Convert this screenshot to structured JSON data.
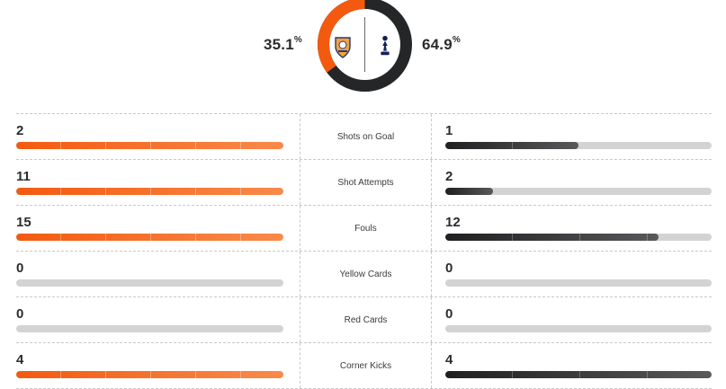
{
  "possession": {
    "home_value": "35.1",
    "away_value": "64.9",
    "percent_sign": "%",
    "home_fraction": 0.351,
    "home_color": "#f35a10",
    "away_color": "#252628",
    "home_crest_icon": "luton-town-crest-icon",
    "away_crest_icon": "tottenham-crest-icon"
  },
  "stats": [
    {
      "label": "Shots on Goal",
      "home": "2",
      "away": "1",
      "home_fill": 1.0,
      "away_fill": 0.5
    },
    {
      "label": "Shot Attempts",
      "home": "11",
      "away": "2",
      "home_fill": 1.0,
      "away_fill": 0.18
    },
    {
      "label": "Fouls",
      "home": "15",
      "away": "12",
      "home_fill": 1.0,
      "away_fill": 0.8
    },
    {
      "label": "Yellow Cards",
      "home": "0",
      "away": "0",
      "home_fill": 0,
      "away_fill": 0
    },
    {
      "label": "Red Cards",
      "home": "0",
      "away": "0",
      "home_fill": 0,
      "away_fill": 0
    },
    {
      "label": "Corner Kicks",
      "home": "4",
      "away": "4",
      "home_fill": 1.0,
      "away_fill": 1.0
    }
  ]
}
